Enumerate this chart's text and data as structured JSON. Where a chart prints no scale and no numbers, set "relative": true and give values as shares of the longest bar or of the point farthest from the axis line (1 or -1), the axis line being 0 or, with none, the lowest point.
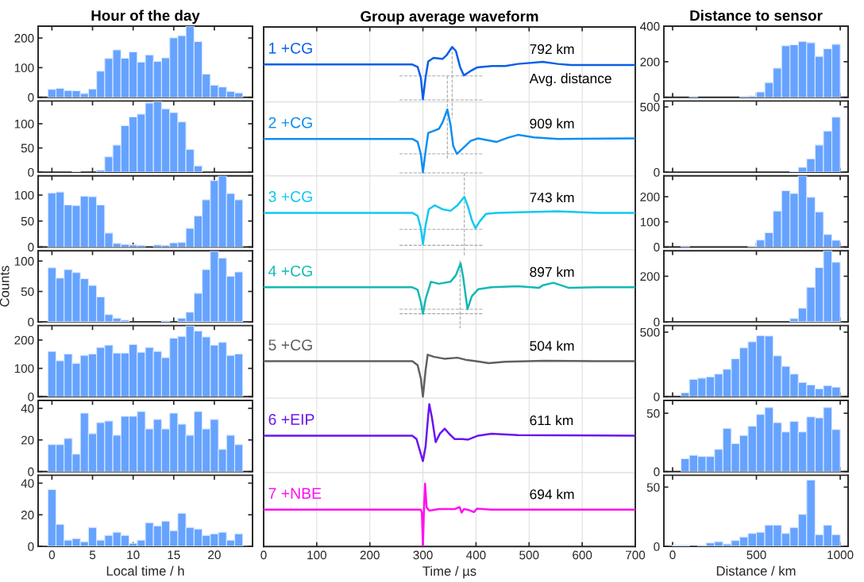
{
  "chart_data": [
    {
      "type": "histogram",
      "title": "Hour of the day",
      "bins": [
        -0.5,
        0.5,
        1.5,
        2.5,
        3.5,
        4.5,
        5.5,
        6.5,
        7.5,
        8.5,
        9.5,
        10.5,
        11.5,
        12.5,
        13.5,
        14.5,
        15.5,
        16.5,
        17.5,
        18.5,
        19.5,
        20.5,
        21.5,
        22.5,
        23.5
      ],
      "values": [
        27,
        30,
        23,
        22,
        13,
        28,
        88,
        131,
        160,
        132,
        153,
        119,
        143,
        121,
        133,
        201,
        208,
        240,
        188,
        78,
        41,
        35,
        20,
        15
      ],
      "color": "#66a3ff",
      "xlim": [
        -1.7,
        24.7
      ],
      "xticks": [
        0,
        5,
        10,
        15,
        20
      ],
      "ylim": [
        0,
        240
      ],
      "yticks": [
        0,
        100,
        200
      ],
      "tick_labels": "y"
    },
    {
      "type": "histogram",
      "bins": [
        -0.5,
        0.5,
        1.5,
        2.5,
        3.5,
        4.5,
        5.5,
        6.5,
        7.5,
        8.5,
        9.5,
        10.5,
        11.5,
        12.5,
        13.5,
        14.5,
        15.5,
        16.5,
        17.5,
        18.5,
        19.5,
        20.5,
        21.5,
        22.5,
        23.5
      ],
      "values": [
        0,
        0,
        0,
        1,
        0,
        0,
        4,
        32,
        56,
        96,
        114,
        120,
        143,
        146,
        131,
        123,
        104,
        47,
        13,
        0,
        0,
        0,
        0,
        0
      ],
      "color": "#66a3ff",
      "xlim": [
        -1.7,
        24.7
      ],
      "xticks": [
        0,
        5,
        10,
        15,
        20
      ],
      "ylim": [
        0,
        147
      ],
      "yticks": [
        0,
        50,
        100
      ],
      "tick_labels": "y"
    },
    {
      "type": "histogram",
      "bins": [
        -0.5,
        0.5,
        1.5,
        2.5,
        3.5,
        4.5,
        5.5,
        6.5,
        7.5,
        8.5,
        9.5,
        10.5,
        11.5,
        12.5,
        13.5,
        14.5,
        15.5,
        16.5,
        17.5,
        18.5,
        19.5,
        20.5,
        21.5,
        22.5,
        23.5
      ],
      "values": [
        104,
        106,
        81,
        80,
        98,
        97,
        81,
        27,
        7,
        5,
        4,
        3,
        0,
        4,
        3,
        8,
        9,
        36,
        60,
        91,
        128,
        137,
        103,
        91
      ],
      "color": "#66a3ff",
      "xlim": [
        -1.7,
        24.7
      ],
      "xticks": [
        0,
        5,
        10,
        15,
        20
      ],
      "ylim": [
        0,
        137
      ],
      "yticks": [
        0,
        50,
        100
      ],
      "tick_labels": "y"
    },
    {
      "type": "histogram",
      "ylabel": "Counts",
      "bins": [
        -0.5,
        0.5,
        1.5,
        2.5,
        3.5,
        4.5,
        5.5,
        6.5,
        7.5,
        8.5,
        9.5,
        10.5,
        11.5,
        12.5,
        13.5,
        14.5,
        15.5,
        16.5,
        17.5,
        18.5,
        19.5,
        20.5,
        21.5,
        22.5,
        23.5
      ],
      "values": [
        89,
        72,
        86,
        81,
        71,
        60,
        41,
        12,
        6,
        3,
        0,
        0,
        0,
        0,
        2,
        0,
        6,
        16,
        47,
        86,
        116,
        105,
        75,
        82
      ],
      "color": "#66a3ff",
      "xlim": [
        -1.7,
        24.7
      ],
      "xticks": [
        0,
        5,
        10,
        15,
        20
      ],
      "ylim": [
        0,
        117
      ],
      "yticks": [
        0,
        50,
        100
      ],
      "tick_labels": "y"
    },
    {
      "type": "histogram",
      "bins": [
        -0.5,
        0.5,
        1.5,
        2.5,
        3.5,
        4.5,
        5.5,
        6.5,
        7.5,
        8.5,
        9.5,
        10.5,
        11.5,
        12.5,
        13.5,
        14.5,
        15.5,
        16.5,
        17.5,
        18.5,
        19.5,
        20.5,
        21.5,
        22.5,
        23.5
      ],
      "values": [
        160,
        127,
        151,
        118,
        146,
        151,
        174,
        182,
        154,
        154,
        184,
        157,
        174,
        160,
        138,
        207,
        213,
        250,
        232,
        211,
        182,
        192,
        146,
        151
      ],
      "color": "#66a3ff",
      "xlim": [
        -1.7,
        24.7
      ],
      "xticks": [
        0,
        5,
        10,
        15,
        20
      ],
      "ylim": [
        0,
        251
      ],
      "yticks": [
        0,
        100,
        200
      ],
      "tick_labels": "y"
    },
    {
      "type": "histogram",
      "bins": [
        -0.5,
        0.5,
        1.5,
        2.5,
        3.5,
        4.5,
        5.5,
        6.5,
        7.5,
        8.5,
        9.5,
        10.5,
        11.5,
        12.5,
        13.5,
        14.5,
        15.5,
        16.5,
        17.5,
        18.5,
        19.5,
        20.5,
        21.5,
        22.5,
        23.5
      ],
      "values": [
        17,
        17,
        21,
        11,
        37,
        24,
        31,
        32,
        23,
        35,
        35,
        38,
        27,
        33,
        27,
        37,
        30,
        23,
        38,
        27,
        33,
        14,
        23,
        17
      ],
      "color": "#66a3ff",
      "xlim": [
        -1.7,
        24.7
      ],
      "xticks": [
        0,
        5,
        10,
        15,
        20
      ],
      "ylim": [
        0,
        45
      ],
      "yticks": [
        0,
        20,
        40
      ],
      "tick_labels": "y"
    },
    {
      "type": "histogram",
      "xlabel": "Local time / h",
      "bins": [
        -0.5,
        0.5,
        1.5,
        2.5,
        3.5,
        4.5,
        5.5,
        6.5,
        7.5,
        8.5,
        9.5,
        10.5,
        11.5,
        12.5,
        13.5,
        14.5,
        15.5,
        16.5,
        17.5,
        18.5,
        19.5,
        20.5,
        21.5,
        22.5,
        23.5
      ],
      "values": [
        36,
        14,
        4,
        5,
        3,
        12,
        4,
        7,
        9,
        7,
        2,
        4,
        15,
        13,
        16,
        10,
        21,
        12,
        11,
        7,
        8,
        9,
        4,
        8
      ],
      "color": "#66a3ff",
      "xlim": [
        -1.7,
        24.7
      ],
      "xticks": [
        0,
        5,
        10,
        15,
        20
      ],
      "ylim": [
        0,
        45
      ],
      "yticks": [
        0,
        20,
        40
      ]
    },
    {
      "type": "line",
      "title": "Group average waveform",
      "xlabel": "Time / µs",
      "relative": true,
      "xlim": [
        0,
        700
      ],
      "xticks": [
        0,
        100,
        200,
        300,
        400,
        500,
        600,
        700
      ],
      "grid": "x",
      "tick_labels": "x",
      "ref_lines": [
        {
          "axis": "y",
          "value": 0.89,
          "color": "#e0e0e0"
        },
        {
          "axis": "y",
          "value": 0.742,
          "color": "#e0e0e0"
        },
        {
          "axis": "y",
          "value": 0.594,
          "color": "#e0e0e0"
        },
        {
          "axis": "y",
          "value": 0.445,
          "color": "#e0e0e0"
        },
        {
          "axis": "y",
          "value": 0.297,
          "color": "#e0e0e0"
        },
        {
          "axis": "y",
          "value": 0.148,
          "color": "#e0e0e0"
        }
      ],
      "annotations": [
        "792 km",
        "909 km",
        "743 km",
        "897 km",
        "504 km",
        "611 km",
        "694 km",
        "Avg. distance"
      ],
      "series": [
        {
          "color": "#a8a8a8",
          "line_style": "dashed",
          "x": [
            256,
            412
          ],
          "values": [
            0.942,
            0.942
          ]
        },
        {
          "color": "#a8a8a8",
          "line_style": "dashed",
          "x": [
            256,
            412
          ],
          "values": [
            0.894,
            0.894
          ]
        },
        {
          "color": "#a8a8a8",
          "line_style": "dashed",
          "x": [
            355,
            355
          ],
          "values": [
            1.0,
            0.858
          ]
        },
        {
          "color": "#a8a8a8",
          "line_style": "dashed",
          "x": [
            346,
            346
          ],
          "values": [
            0.942,
            0.775
          ]
        },
        {
          "color": "#a8a8a8",
          "line_style": "dashed",
          "x": [
            256,
            412
          ],
          "values": [
            0.786,
            0.786
          ]
        },
        {
          "color": "#a8a8a8",
          "line_style": "dashed",
          "x": [
            256,
            412
          ],
          "values": [
            0.748,
            0.748
          ]
        },
        {
          "color": "#a8a8a8",
          "line_style": "dashed",
          "x": [
            378,
            378
          ],
          "values": [
            0.748,
            0.581
          ]
        },
        {
          "color": "#a8a8a8",
          "line_style": "dashed",
          "x": [
            256,
            412
          ],
          "values": [
            0.635,
            0.635
          ]
        },
        {
          "color": "#a8a8a8",
          "line_style": "dashed",
          "x": [
            256,
            412
          ],
          "values": [
            0.603,
            0.603
          ]
        },
        {
          "color": "#a8a8a8",
          "line_style": "dashed",
          "x": [
            370,
            370
          ],
          "values": [
            0.573,
            0.437
          ]
        },
        {
          "color": "#a8a8a8",
          "line_style": "dashed",
          "x": [
            256,
            412
          ],
          "values": [
            0.475,
            0.475
          ]
        },
        {
          "color": "#a8a8a8",
          "line_style": "dashed",
          "x": [
            256,
            412
          ],
          "values": [
            0.466,
            0.466
          ]
        },
        {
          "name": "1 +CG",
          "color": "#0a5ee8",
          "x": [
            0,
            280,
            290,
            296,
            300,
            305,
            310,
            320,
            337,
            345,
            355,
            362,
            370,
            377,
            390,
            402,
            430,
            455,
            479,
            526,
            554,
            579,
            700
          ],
          "values": [
            0.965,
            0.965,
            0.96,
            0.939,
            0.895,
            0.939,
            0.971,
            0.978,
            0.976,
            0.984,
            1.0,
            0.992,
            0.96,
            0.943,
            0.952,
            0.959,
            0.962,
            0.962,
            0.966,
            0.97,
            0.966,
            0.964,
            0.964
          ]
        },
        {
          "name": "2 +CG",
          "color": "#0d8ff0",
          "x": [
            0,
            280,
            290,
            296,
            300,
            305,
            310,
            320,
            330,
            337,
            346,
            352,
            357,
            364,
            375,
            390,
            404,
            419,
            439,
            459,
            479,
            509,
            554,
            698
          ],
          "values": [
            0.816,
            0.816,
            0.81,
            0.786,
            0.749,
            0.791,
            0.828,
            0.832,
            0.836,
            0.849,
            0.875,
            0.844,
            0.802,
            0.786,
            0.797,
            0.812,
            0.817,
            0.814,
            0.81,
            0.818,
            0.824,
            0.819,
            0.816,
            0.817
          ]
        },
        {
          "name": "3 +CG",
          "color": "#12c8f0",
          "x": [
            0,
            280,
            290,
            296,
            300,
            305,
            311,
            322,
            337,
            352,
            365,
            378,
            385,
            392,
            399,
            407,
            419,
            439,
            479,
            554,
            628,
            698
          ],
          "values": [
            0.668,
            0.668,
            0.662,
            0.638,
            0.605,
            0.643,
            0.675,
            0.683,
            0.675,
            0.672,
            0.683,
            0.7,
            0.68,
            0.654,
            0.637,
            0.651,
            0.666,
            0.668,
            0.669,
            0.671,
            0.668,
            0.668
          ]
        },
        {
          "name": "4 +CG",
          "color": "#14b8b4",
          "x": [
            0,
            280,
            290,
            296,
            300,
            305,
            315,
            330,
            352,
            362,
            371,
            376,
            380,
            384,
            392,
            404,
            429,
            479,
            519,
            526,
            546,
            574,
            628,
            698
          ],
          "values": [
            0.519,
            0.519,
            0.514,
            0.49,
            0.466,
            0.495,
            0.53,
            0.526,
            0.53,
            0.543,
            0.567,
            0.538,
            0.506,
            0.475,
            0.501,
            0.515,
            0.519,
            0.521,
            0.518,
            0.523,
            0.528,
            0.518,
            0.519,
            0.519
          ]
        },
        {
          "name": "5 +CG",
          "color": "#606060",
          "x": [
            0,
            280,
            290,
            296,
            300,
            305,
            309,
            320,
            340,
            365,
            380,
            400,
            424,
            454,
            529,
            628,
            698
          ],
          "values": [
            0.371,
            0.371,
            0.363,
            0.337,
            0.3,
            0.353,
            0.384,
            0.38,
            0.376,
            0.378,
            0.374,
            0.371,
            0.367,
            0.37,
            0.372,
            0.371,
            0.371
          ]
        },
        {
          "name": "6 +EIP",
          "color": "#6a14f0",
          "x": [
            0,
            280,
            288,
            295,
            300,
            305,
            310,
            312,
            317,
            324,
            332,
            341,
            350,
            360,
            375,
            385,
            404,
            429,
            479,
            698
          ],
          "values": [
            0.222,
            0.222,
            0.215,
            0.189,
            0.171,
            0.2,
            0.263,
            0.285,
            0.258,
            0.209,
            0.226,
            0.236,
            0.225,
            0.215,
            0.215,
            0.214,
            0.222,
            0.226,
            0.223,
            0.222
          ]
        },
        {
          "name": "7 +NBE",
          "color": "#ff10f0",
          "x": [
            0,
            280,
            296,
            298,
            300,
            302,
            304,
            307,
            312,
            330,
            360,
            369,
            373,
            377,
            387,
            396,
            402,
            429,
            698
          ],
          "values": [
            0.074,
            0.074,
            0.074,
            0.068,
            0.002,
            0.073,
            0.126,
            0.078,
            0.072,
            0.075,
            0.075,
            0.079,
            0.068,
            0.075,
            0.073,
            0.069,
            0.076,
            0.074,
            0.074
          ]
        }
      ]
    },
    {
      "type": "histogram",
      "title": "Distance to sensor",
      "bins": [
        0,
        50,
        100,
        150,
        200,
        250,
        300,
        350,
        400,
        450,
        500,
        550,
        600,
        650,
        700,
        750,
        800,
        850,
        900,
        950,
        1000
      ],
      "values": [
        0,
        0,
        4,
        0,
        0,
        0,
        0,
        0,
        4,
        7,
        30,
        83,
        164,
        290,
        295,
        314,
        307,
        230,
        273,
        298
      ],
      "color": "#66a3ff",
      "xlim": [
        -52,
        1047
      ],
      "xticks": [
        0,
        500,
        1000
      ],
      "ylim": [
        0,
        400
      ],
      "yticks": [
        0,
        200,
        400
      ],
      "tick_labels": "y"
    },
    {
      "type": "histogram",
      "bins": [
        0,
        50,
        100,
        150,
        200,
        250,
        300,
        350,
        400,
        450,
        500,
        550,
        600,
        650,
        700,
        750,
        800,
        850,
        900,
        950,
        1000
      ],
      "values": [
        0,
        0,
        0,
        0,
        0,
        0,
        0,
        0,
        0,
        0,
        0,
        0,
        0,
        0,
        4,
        37,
        102,
        208,
        315,
        421
      ],
      "color": "#66a3ff",
      "xlim": [
        -52,
        1047
      ],
      "xticks": [
        0,
        500,
        1000
      ],
      "ylim": [
        0,
        545
      ],
      "yticks": [
        0,
        500
      ],
      "tick_labels": "y"
    },
    {
      "type": "histogram",
      "bins": [
        0,
        50,
        100,
        150,
        200,
        250,
        300,
        350,
        400,
        450,
        500,
        550,
        600,
        650,
        700,
        750,
        800,
        850,
        900,
        950,
        1000
      ],
      "values": [
        0,
        4,
        0,
        0,
        0,
        0,
        0,
        0,
        0,
        3,
        28,
        57,
        143,
        224,
        213,
        283,
        198,
        140,
        50,
        27
      ],
      "color": "#66a3ff",
      "xlim": [
        -52,
        1047
      ],
      "xticks": [
        0,
        500,
        1000
      ],
      "ylim": [
        0,
        283
      ],
      "yticks": [
        0,
        100,
        200
      ],
      "tick_labels": "y"
    },
    {
      "type": "histogram",
      "bins": [
        0,
        50,
        100,
        150,
        200,
        250,
        300,
        350,
        400,
        450,
        500,
        550,
        600,
        650,
        700,
        750,
        800,
        850,
        900,
        950,
        1000
      ],
      "values": [
        0,
        0,
        0,
        0,
        0,
        0,
        0,
        0,
        0,
        0,
        0,
        0,
        0,
        0,
        15,
        60,
        152,
        238,
        312,
        262
      ],
      "color": "#66a3ff",
      "xlim": [
        -52,
        1047
      ],
      "xticks": [
        0,
        500,
        1000
      ],
      "ylim": [
        0,
        312
      ],
      "yticks": [
        0,
        200
      ],
      "tick_labels": "y"
    },
    {
      "type": "histogram",
      "bins": [
        0,
        50,
        100,
        150,
        200,
        250,
        300,
        350,
        400,
        450,
        500,
        550,
        600,
        650,
        700,
        750,
        800,
        850,
        900,
        950,
        1000
      ],
      "values": [
        0,
        31,
        134,
        144,
        154,
        175,
        212,
        294,
        379,
        426,
        473,
        471,
        317,
        235,
        175,
        111,
        91,
        62,
        86,
        74
      ],
      "color": "#66a3ff",
      "xlim": [
        -52,
        1047
      ],
      "xticks": [
        0,
        500,
        1000
      ],
      "ylim": [
        0,
        551
      ],
      "yticks": [
        0,
        500
      ],
      "tick_labels": "y"
    },
    {
      "type": "histogram",
      "bins": [
        0,
        50,
        100,
        150,
        200,
        250,
        300,
        350,
        400,
        450,
        500,
        550,
        600,
        650,
        700,
        750,
        800,
        850,
        900,
        950,
        1000
      ],
      "values": [
        0,
        11,
        14,
        13,
        13,
        19,
        37,
        24,
        31,
        39,
        49,
        55,
        42,
        34,
        43,
        34,
        47,
        46,
        55,
        36
      ],
      "color": "#66a3ff",
      "xlim": [
        -52,
        1047
      ],
      "xticks": [
        0,
        500,
        1000
      ],
      "ylim": [
        0,
        61
      ],
      "yticks": [
        0,
        50
      ],
      "tick_labels": "y"
    },
    {
      "type": "histogram",
      "xlabel": "Distance / km",
      "bins": [
        0,
        50,
        100,
        150,
        200,
        250,
        300,
        350,
        400,
        450,
        500,
        550,
        600,
        650,
        700,
        750,
        800,
        850,
        900,
        950,
        1000
      ],
      "values": [
        1,
        1,
        0,
        1,
        3,
        4,
        2,
        5,
        8,
        11,
        12,
        18,
        18,
        11,
        16,
        27,
        56,
        10,
        18,
        10
      ],
      "color": "#66a3ff",
      "xlim": [
        -52,
        1047
      ],
      "xticks": [
        0,
        500,
        1000
      ],
      "ylim": [
        0,
        60
      ],
      "yticks": [
        0,
        50
      ]
    }
  ]
}
